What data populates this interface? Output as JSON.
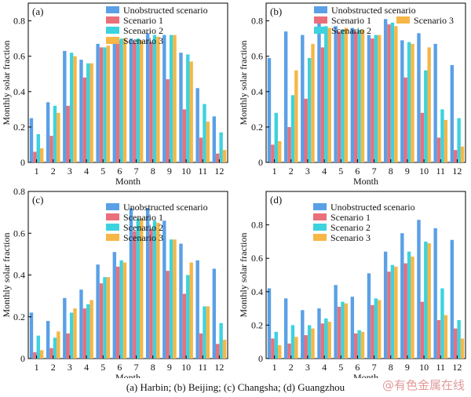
{
  "figure": {
    "caption": "(a) Harbin; (b) Beijing; (c) Changsha; (d) Guangzhou",
    "watermark": "@有色金属在线"
  },
  "chart_data": [
    {
      "type": "bar",
      "panel_label": "(a)",
      "categories": [
        "1",
        "2",
        "3",
        "4",
        "5",
        "6",
        "7",
        "8",
        "9",
        "10",
        "11",
        "12"
      ],
      "xlabel": "Month",
      "ylabel": "Monthly solar fraction",
      "ylim": [
        0,
        0.9
      ],
      "yticks": [
        "0",
        "0.2",
        "0.4",
        "0.6",
        "0.8"
      ],
      "legend_position": "top-center",
      "legend_layout": "single-column",
      "series": [
        {
          "name": "Unobstructed scenario",
          "color": "#5aa0e6",
          "values": [
            0.25,
            0.34,
            0.63,
            0.58,
            0.67,
            0.71,
            0.7,
            0.73,
            0.72,
            0.62,
            0.42,
            0.26
          ]
        },
        {
          "name": "Scenario 1",
          "color": "#ea6f7b",
          "values": [
            0.06,
            0.15,
            0.32,
            0.48,
            0.65,
            0.69,
            0.68,
            0.68,
            0.47,
            0.3,
            0.14,
            0.05
          ]
        },
        {
          "name": "Scenario 2",
          "color": "#3cd3de",
          "values": [
            0.16,
            0.32,
            0.62,
            0.56,
            0.65,
            0.7,
            0.7,
            0.72,
            0.72,
            0.61,
            0.33,
            0.17
          ]
        },
        {
          "name": "Scenario 3",
          "color": "#f6b746",
          "values": [
            0.08,
            0.28,
            0.6,
            0.56,
            0.66,
            0.7,
            0.69,
            0.71,
            0.72,
            0.57,
            0.23,
            0.07
          ]
        }
      ]
    },
    {
      "type": "bar",
      "panel_label": "(b)",
      "categories": [
        "1",
        "2",
        "3",
        "4",
        "5",
        "6",
        "7",
        "8",
        "9",
        "10",
        "11",
        "12"
      ],
      "xlabel": "Month",
      "ylabel": "Monthly solar fraction",
      "ylim": [
        0,
        0.9
      ],
      "yticks": [
        "0",
        "0.2",
        "0.4",
        "0.6",
        "0.8"
      ],
      "legend_position": "top-center",
      "legend_layout": "two-column",
      "series": [
        {
          "name": "Unobstructed scenario",
          "color": "#5aa0e6",
          "values": [
            0.59,
            0.74,
            0.72,
            0.79,
            0.77,
            0.76,
            0.72,
            0.81,
            0.69,
            0.73,
            0.67,
            0.55
          ]
        },
        {
          "name": "Scenario 1",
          "color": "#ea6f7b",
          "values": [
            0.1,
            0.2,
            0.36,
            0.65,
            0.74,
            0.74,
            0.7,
            0.78,
            0.48,
            0.28,
            0.14,
            0.07
          ]
        },
        {
          "name": "Scenario 2",
          "color": "#3cd3de",
          "values": [
            0.28,
            0.38,
            0.59,
            0.77,
            0.75,
            0.75,
            0.72,
            0.79,
            0.68,
            0.52,
            0.3,
            0.25
          ]
        },
        {
          "name": "Scenario 3",
          "color": "#f6b746",
          "values": [
            0.12,
            0.52,
            0.67,
            0.76,
            0.76,
            0.75,
            0.72,
            0.77,
            0.67,
            0.65,
            0.24,
            0.09
          ]
        }
      ]
    },
    {
      "type": "bar",
      "panel_label": "(c)",
      "categories": [
        "1",
        "2",
        "3",
        "4",
        "5",
        "6",
        "7",
        "8",
        "9",
        "10",
        "11",
        "12"
      ],
      "xlabel": "Month",
      "ylabel": "Monthly solar fraction",
      "ylim": [
        0,
        0.8
      ],
      "yticks": [
        "0",
        "0.2",
        "0.4",
        "0.6",
        "0.8"
      ],
      "legend_position": "top-center",
      "legend_layout": "single-column",
      "series": [
        {
          "name": "Unobstructed scenario",
          "color": "#5aa0e6",
          "values": [
            0.22,
            0.18,
            0.29,
            0.33,
            0.45,
            0.51,
            0.72,
            0.72,
            0.66,
            0.55,
            0.47,
            0.43
          ]
        },
        {
          "name": "Scenario 1",
          "color": "#ea6f7b",
          "values": [
            0.03,
            0.05,
            0.12,
            0.24,
            0.36,
            0.44,
            0.61,
            0.62,
            0.42,
            0.31,
            0.12,
            0.07
          ]
        },
        {
          "name": "Scenario 2",
          "color": "#3cd3de",
          "values": [
            0.11,
            0.1,
            0.22,
            0.26,
            0.39,
            0.47,
            0.67,
            0.66,
            0.57,
            0.4,
            0.25,
            0.17
          ]
        },
        {
          "name": "Scenario 3",
          "color": "#f6b746",
          "values": [
            0.04,
            0.13,
            0.24,
            0.28,
            0.39,
            0.46,
            0.67,
            0.65,
            0.57,
            0.46,
            0.25,
            0.09
          ]
        }
      ]
    },
    {
      "type": "bar",
      "panel_label": "(d)",
      "categories": [
        "1",
        "2",
        "3",
        "4",
        "5",
        "6",
        "7",
        "8",
        "9",
        "10",
        "11",
        "12"
      ],
      "xlabel": "Month",
      "ylabel": "Monthly solar fraction",
      "ylim": [
        0,
        1.0
      ],
      "yticks": [
        "0",
        "0.2",
        "0.4",
        "0.6",
        "0.8"
      ],
      "legend_position": "top-center",
      "legend_layout": "single-column",
      "series": [
        {
          "name": "Unobstructed scenario",
          "color": "#5aa0e6",
          "values": [
            0.42,
            0.36,
            0.29,
            0.3,
            0.44,
            0.37,
            0.51,
            0.64,
            0.75,
            0.83,
            0.78,
            0.71
          ]
        },
        {
          "name": "Scenario 1",
          "color": "#ea6f7b",
          "values": [
            0.12,
            0.09,
            0.14,
            0.21,
            0.31,
            0.15,
            0.32,
            0.52,
            0.57,
            0.34,
            0.23,
            0.18
          ]
        },
        {
          "name": "Scenario 2",
          "color": "#3cd3de",
          "values": [
            0.16,
            0.2,
            0.2,
            0.24,
            0.34,
            0.17,
            0.36,
            0.56,
            0.64,
            0.7,
            0.42,
            0.23
          ]
        },
        {
          "name": "Scenario 3",
          "color": "#f6b746",
          "values": [
            0.08,
            0.13,
            0.18,
            0.22,
            0.33,
            0.16,
            0.35,
            0.55,
            0.61,
            0.69,
            0.26,
            0.12
          ]
        }
      ]
    }
  ]
}
